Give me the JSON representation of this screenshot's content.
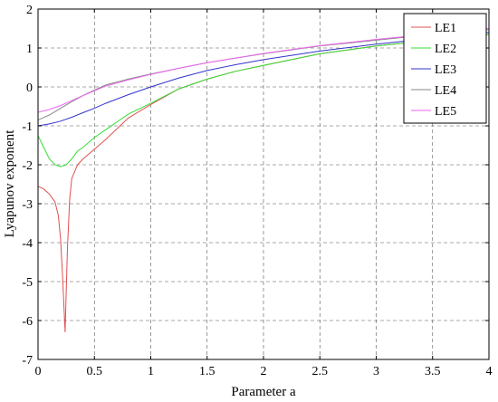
{
  "chart_data": {
    "type": "line",
    "title": "",
    "xlabel": "Parameter a",
    "ylabel": "Lyapunov exponent",
    "xlim": [
      0,
      4
    ],
    "ylim": [
      -7,
      2
    ],
    "xticks": [
      0,
      0.5,
      1,
      1.5,
      2,
      2.5,
      3,
      3.5,
      4
    ],
    "yticks": [
      -7,
      -6,
      -5,
      -4,
      -3,
      -2,
      -1,
      0,
      1,
      2
    ],
    "xtick_labels": [
      "0",
      "0.5",
      "1",
      "1.5",
      "2",
      "2.5",
      "3",
      "3.5",
      "4"
    ],
    "ytick_labels": [
      "-7",
      "-6",
      "-5",
      "-4",
      "-3",
      "-2",
      "-1",
      "0",
      "1",
      "2"
    ],
    "grid": true,
    "legend_position": "top-right",
    "series": [
      {
        "name": "LE1",
        "color": "#e05050",
        "x": [
          0,
          0.05,
          0.1,
          0.15,
          0.18,
          0.2,
          0.22,
          0.24,
          0.26,
          0.28,
          0.3,
          0.35,
          0.4,
          0.5,
          0.6,
          0.8,
          1,
          1.25,
          1.5,
          1.75,
          2,
          2.5,
          3,
          3.5,
          4
        ],
        "y": [
          -2.55,
          -2.62,
          -2.75,
          -2.95,
          -3.3,
          -3.9,
          -5.0,
          -6.3,
          -4.2,
          -2.9,
          -2.35,
          -2.0,
          -1.85,
          -1.6,
          -1.35,
          -0.8,
          -0.45,
          -0.05,
          0.2,
          0.4,
          0.55,
          0.85,
          1.05,
          1.2,
          1.35
        ]
      },
      {
        "name": "LE2",
        "color": "#33dd33",
        "x": [
          0,
          0.05,
          0.1,
          0.15,
          0.2,
          0.25,
          0.3,
          0.35,
          0.4,
          0.5,
          0.6,
          0.8,
          1,
          1.25,
          1.5,
          1.75,
          2,
          2.5,
          3,
          3.5,
          4
        ],
        "y": [
          -1.25,
          -1.55,
          -1.85,
          -2.0,
          -2.05,
          -2.0,
          -1.85,
          -1.65,
          -1.55,
          -1.3,
          -1.1,
          -0.7,
          -0.42,
          -0.05,
          0.2,
          0.4,
          0.55,
          0.85,
          1.05,
          1.2,
          1.35
        ]
      },
      {
        "name": "LE3",
        "color": "#3333cc",
        "x": [
          0,
          0.1,
          0.2,
          0.3,
          0.4,
          0.5,
          0.6,
          0.8,
          1,
          1.25,
          1.5,
          1.75,
          2,
          2.5,
          3,
          3.5,
          4
        ],
        "y": [
          -1.0,
          -0.95,
          -0.88,
          -0.78,
          -0.66,
          -0.55,
          -0.42,
          -0.2,
          0.0,
          0.23,
          0.42,
          0.57,
          0.7,
          0.92,
          1.1,
          1.25,
          1.4
        ]
      },
      {
        "name": "LE4",
        "color": "#888888",
        "x": [
          0,
          0.1,
          0.2,
          0.3,
          0.4,
          0.5,
          0.6,
          0.8,
          1,
          1.25,
          1.5,
          1.75,
          2,
          2.5,
          3,
          3.5,
          4
        ],
        "y": [
          -0.85,
          -0.72,
          -0.55,
          -0.38,
          -0.22,
          -0.08,
          0.05,
          0.2,
          0.33,
          0.48,
          0.62,
          0.74,
          0.85,
          1.05,
          1.2,
          1.35,
          1.47
        ]
      },
      {
        "name": "LE5",
        "color": "#ee66ee",
        "x": [
          0,
          0.1,
          0.2,
          0.3,
          0.4,
          0.5,
          0.6,
          0.8,
          1,
          1.25,
          1.5,
          1.75,
          2,
          2.5,
          3,
          3.5,
          4
        ],
        "y": [
          -0.65,
          -0.58,
          -0.48,
          -0.35,
          -0.22,
          -0.1,
          0.02,
          0.18,
          0.32,
          0.48,
          0.62,
          0.74,
          0.86,
          1.06,
          1.22,
          1.36,
          1.5
        ]
      }
    ]
  }
}
